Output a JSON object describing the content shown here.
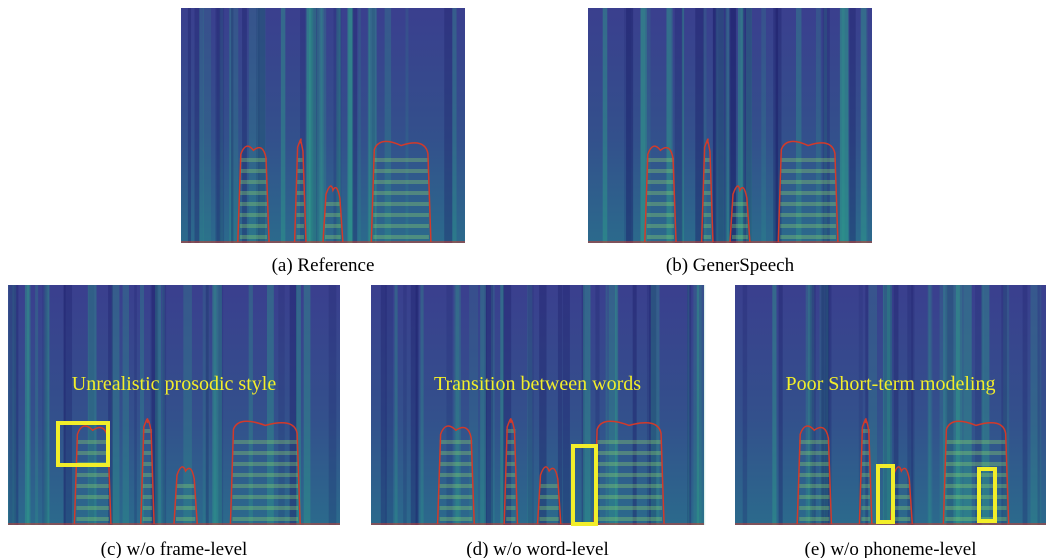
{
  "panels": [
    {
      "caption": "(a) Reference"
    },
    {
      "caption": "(b) GenerSpeech"
    },
    {
      "caption": "(c) w/o frame-level",
      "annotation": "Unrealistic prosodic style"
    },
    {
      "caption": "(d) w/o word-level",
      "annotation": "Transition between words"
    },
    {
      "caption": "(e) w/o phoneme-level",
      "annotation": "Poor Short-term modeling"
    }
  ]
}
